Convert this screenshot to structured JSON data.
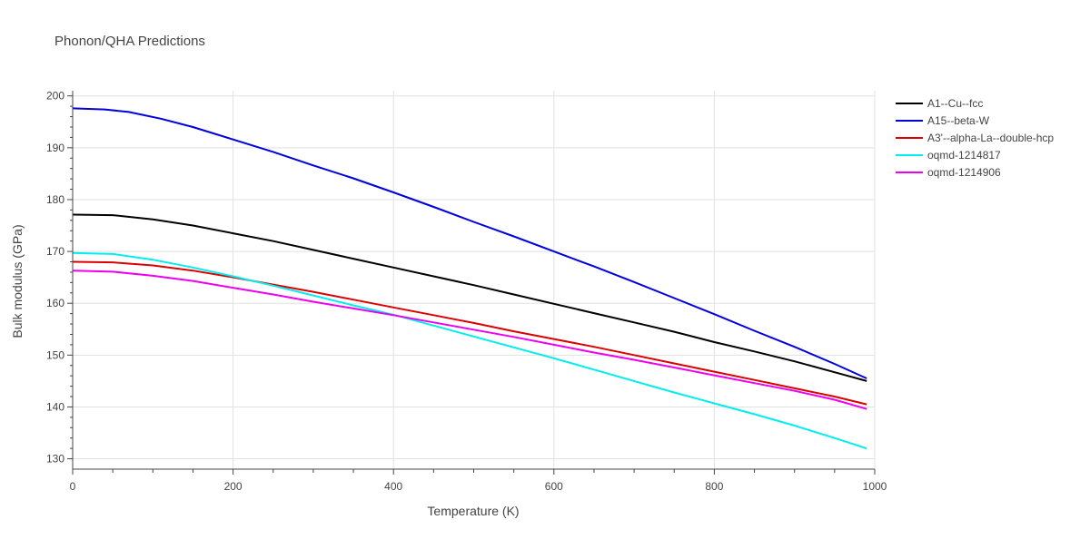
{
  "chart_data": {
    "type": "line",
    "title": "Phonon/QHA Predictions",
    "xlabel": "Temperature (K)",
    "ylabel": "Bulk modulus (GPa)",
    "xlim": [
      0,
      1000
    ],
    "ylim": [
      128,
      201
    ],
    "x_ticks": [
      0,
      200,
      400,
      600,
      800,
      1000
    ],
    "y_ticks": [
      130,
      140,
      150,
      160,
      170,
      180,
      190,
      200
    ],
    "grid": true,
    "legend_position": "top-right",
    "series": [
      {
        "name": "A1--Cu--fcc",
        "color": "#000000",
        "points": [
          [
            0,
            177.1
          ],
          [
            50,
            177.0
          ],
          [
            100,
            176.2
          ],
          [
            150,
            175.0
          ],
          [
            200,
            173.5
          ],
          [
            250,
            172.0
          ],
          [
            300,
            170.3
          ],
          [
            350,
            168.6
          ],
          [
            400,
            166.9
          ],
          [
            450,
            165.2
          ],
          [
            500,
            163.5
          ],
          [
            550,
            161.7
          ],
          [
            600,
            159.9
          ],
          [
            650,
            158.1
          ],
          [
            700,
            156.3
          ],
          [
            750,
            154.5
          ],
          [
            800,
            152.5
          ],
          [
            850,
            150.7
          ],
          [
            900,
            148.8
          ],
          [
            950,
            146.7
          ],
          [
            990,
            145.0
          ]
        ]
      },
      {
        "name": "A15--beta-W",
        "color": "#0000dd",
        "points": [
          [
            0,
            197.6
          ],
          [
            40,
            197.4
          ],
          [
            70,
            196.9
          ],
          [
            110,
            195.6
          ],
          [
            150,
            194.0
          ],
          [
            200,
            191.6
          ],
          [
            250,
            189.2
          ],
          [
            300,
            186.6
          ],
          [
            350,
            184.1
          ],
          [
            400,
            181.4
          ],
          [
            450,
            178.6
          ],
          [
            500,
            175.7
          ],
          [
            550,
            172.9
          ],
          [
            600,
            170.0
          ],
          [
            650,
            167.1
          ],
          [
            700,
            164.1
          ],
          [
            750,
            161.0
          ],
          [
            800,
            157.9
          ],
          [
            850,
            154.7
          ],
          [
            900,
            151.6
          ],
          [
            950,
            148.3
          ],
          [
            990,
            145.5
          ]
        ]
      },
      {
        "name": "A3'--alpha-La--double-hcp",
        "color": "#dd0000",
        "points": [
          [
            0,
            168.0
          ],
          [
            50,
            167.9
          ],
          [
            100,
            167.3
          ],
          [
            150,
            166.3
          ],
          [
            200,
            165.0
          ],
          [
            250,
            163.6
          ],
          [
            300,
            162.2
          ],
          [
            350,
            160.7
          ],
          [
            400,
            159.2
          ],
          [
            450,
            157.7
          ],
          [
            500,
            156.2
          ],
          [
            550,
            154.6
          ],
          [
            600,
            153.1
          ],
          [
            650,
            151.6
          ],
          [
            700,
            150.0
          ],
          [
            750,
            148.4
          ],
          [
            800,
            146.8
          ],
          [
            850,
            145.2
          ],
          [
            900,
            143.6
          ],
          [
            950,
            142.0
          ],
          [
            990,
            140.5
          ]
        ]
      },
      {
        "name": "oqmd-1214817",
        "color": "#00eeee",
        "points": [
          [
            0,
            169.7
          ],
          [
            50,
            169.5
          ],
          [
            100,
            168.4
          ],
          [
            150,
            166.9
          ],
          [
            200,
            165.2
          ],
          [
            250,
            163.4
          ],
          [
            300,
            161.5
          ],
          [
            350,
            159.6
          ],
          [
            400,
            157.8
          ],
          [
            450,
            155.7
          ],
          [
            500,
            153.6
          ],
          [
            550,
            151.5
          ],
          [
            600,
            149.4
          ],
          [
            650,
            147.2
          ],
          [
            700,
            145.0
          ],
          [
            750,
            142.8
          ],
          [
            800,
            140.7
          ],
          [
            850,
            138.6
          ],
          [
            900,
            136.4
          ],
          [
            950,
            134.0
          ],
          [
            990,
            132.0
          ]
        ]
      },
      {
        "name": "oqmd-1214906",
        "color": "#ee00ee",
        "points": [
          [
            0,
            166.3
          ],
          [
            50,
            166.1
          ],
          [
            100,
            165.3
          ],
          [
            150,
            164.3
          ],
          [
            200,
            163.0
          ],
          [
            250,
            161.7
          ],
          [
            300,
            160.3
          ],
          [
            350,
            159.0
          ],
          [
            400,
            157.7
          ],
          [
            450,
            156.3
          ],
          [
            500,
            154.9
          ],
          [
            550,
            153.5
          ],
          [
            600,
            152.0
          ],
          [
            650,
            150.5
          ],
          [
            700,
            149.1
          ],
          [
            750,
            147.6
          ],
          [
            800,
            146.1
          ],
          [
            850,
            144.6
          ],
          [
            900,
            143.1
          ],
          [
            950,
            141.4
          ],
          [
            990,
            139.6
          ]
        ]
      }
    ]
  }
}
